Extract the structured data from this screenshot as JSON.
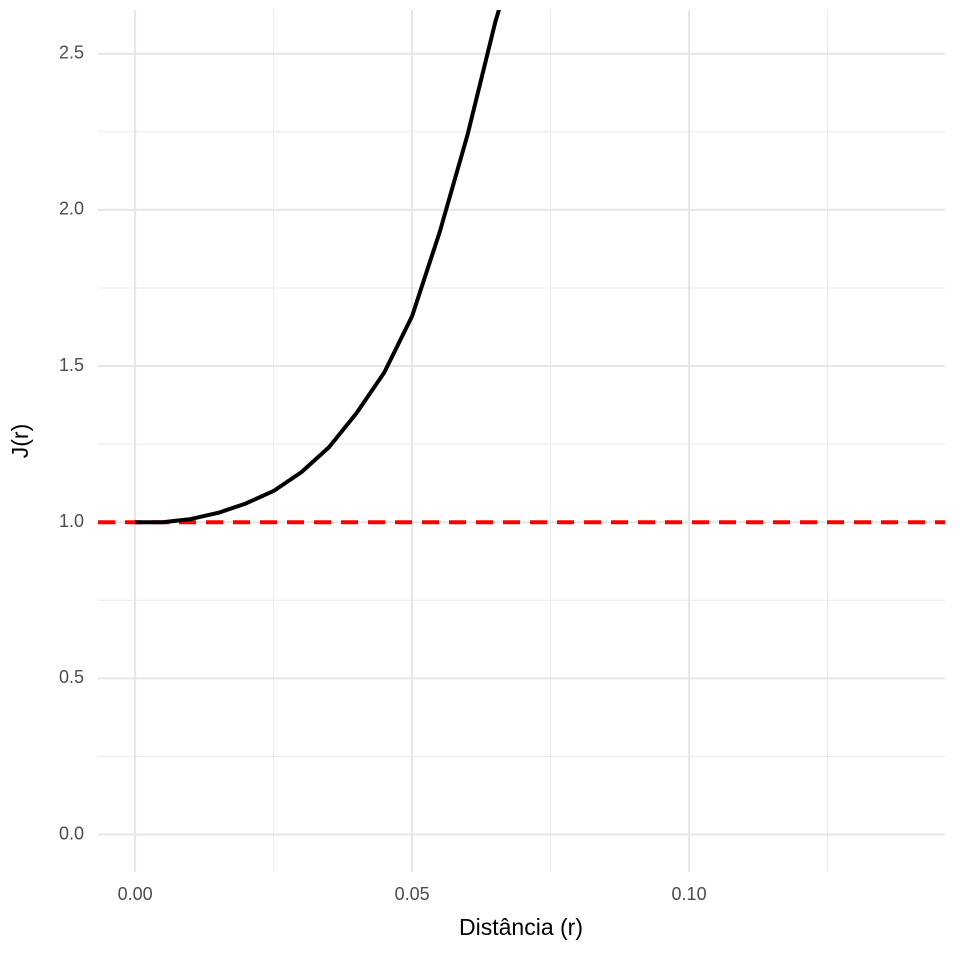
{
  "chart_data": {
    "type": "line",
    "x_label": "Distância (r)",
    "y_label": "J(r)",
    "x": [
      0,
      0.005,
      0.01,
      0.015,
      0.02,
      0.025,
      0.03,
      0.035,
      0.04,
      0.045,
      0.05,
      0.055,
      0.06,
      0.065,
      0.066
    ],
    "series": [
      {
        "color": "#000000",
        "values": [
          1.0,
          1.0,
          1.01,
          1.03,
          1.06,
          1.1,
          1.16,
          1.24,
          1.35,
          1.48,
          1.66,
          1.93,
          2.24,
          2.6,
          2.66
        ]
      }
    ],
    "reference_line": {
      "value": 1,
      "color": "#ff0000"
    },
    "xlim": [
      -0.0067,
      0.1462
    ],
    "ylim": [
      -0.12,
      2.64
    ],
    "xticks": [
      {
        "value": 0,
        "label": "0.00"
      },
      0.05,
      {
        "value": 0.1,
        "label": "0.10"
      }
    ],
    "yticks": [
      {
        "value": 0,
        "label": "0.0"
      },
      0.5,
      {
        "value": 1,
        "label": "1.0"
      },
      1.5,
      {
        "value": 2,
        "label": "2.0"
      },
      2.5
    ],
    "x_minor_ticks": [
      0.025,
      0.075,
      0.125
    ],
    "y_minor_ticks": [
      0.25,
      0.75,
      1.25,
      1.75,
      2.25
    ],
    "grid": true
  }
}
